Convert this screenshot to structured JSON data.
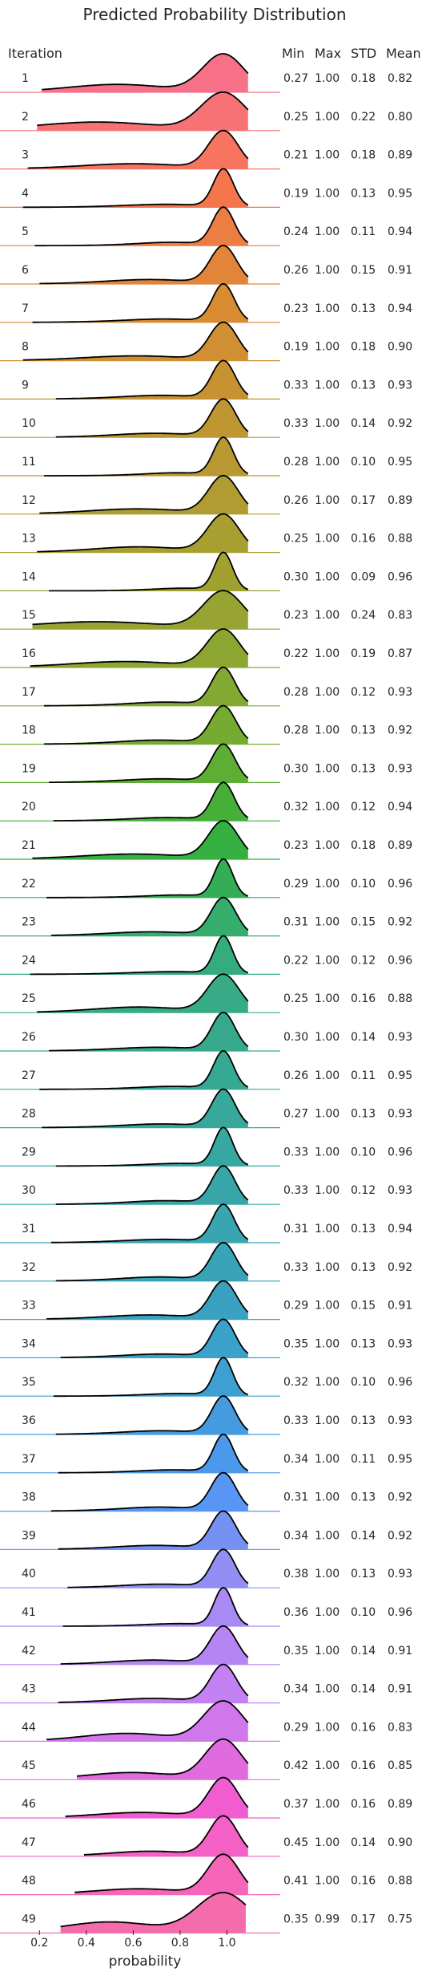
{
  "chart_data": {
    "type": "ridgeline",
    "title": "Predicted Probability Distribution",
    "row_header": "Iteration",
    "column_headers": [
      "Min",
      "Max",
      "STD",
      "Mean"
    ],
    "xlabel": "probability",
    "xticks": [
      "0.2",
      "0.4",
      "0.6",
      "0.8",
      "1.0"
    ],
    "xlim": [
      0.1,
      1.2
    ],
    "iterations": [
      "1",
      "2",
      "3",
      "4",
      "5",
      "6",
      "7",
      "8",
      "9",
      "10",
      "11",
      "12",
      "13",
      "14",
      "15",
      "16",
      "17",
      "18",
      "19",
      "20",
      "21",
      "22",
      "23",
      "24",
      "25",
      "26",
      "27",
      "28",
      "29",
      "30",
      "31",
      "32",
      "33",
      "34",
      "35",
      "36",
      "37",
      "38",
      "39",
      "40",
      "41",
      "42",
      "43",
      "44",
      "45",
      "46",
      "47",
      "48",
      "49"
    ],
    "min": [
      "0.27",
      "0.25",
      "0.21",
      "0.19",
      "0.24",
      "0.26",
      "0.23",
      "0.19",
      "0.33",
      "0.33",
      "0.28",
      "0.26",
      "0.25",
      "0.30",
      "0.23",
      "0.22",
      "0.28",
      "0.28",
      "0.30",
      "0.32",
      "0.23",
      "0.29",
      "0.31",
      "0.22",
      "0.25",
      "0.30",
      "0.26",
      "0.27",
      "0.33",
      "0.33",
      "0.31",
      "0.33",
      "0.29",
      "0.35",
      "0.32",
      "0.33",
      "0.34",
      "0.31",
      "0.34",
      "0.38",
      "0.36",
      "0.35",
      "0.34",
      "0.29",
      "0.42",
      "0.37",
      "0.45",
      "0.41",
      "0.35"
    ],
    "max": [
      "1.00",
      "1.00",
      "1.00",
      "1.00",
      "1.00",
      "1.00",
      "1.00",
      "1.00",
      "1.00",
      "1.00",
      "1.00",
      "1.00",
      "1.00",
      "1.00",
      "1.00",
      "1.00",
      "1.00",
      "1.00",
      "1.00",
      "1.00",
      "1.00",
      "1.00",
      "1.00",
      "1.00",
      "1.00",
      "1.00",
      "1.00",
      "1.00",
      "1.00",
      "1.00",
      "1.00",
      "1.00",
      "1.00",
      "1.00",
      "1.00",
      "1.00",
      "1.00",
      "1.00",
      "1.00",
      "1.00",
      "1.00",
      "1.00",
      "1.00",
      "1.00",
      "1.00",
      "1.00",
      "1.00",
      "1.00",
      "0.99"
    ],
    "std": [
      "0.18",
      "0.22",
      "0.18",
      "0.13",
      "0.11",
      "0.15",
      "0.13",
      "0.18",
      "0.13",
      "0.14",
      "0.10",
      "0.17",
      "0.16",
      "0.09",
      "0.24",
      "0.19",
      "0.12",
      "0.13",
      "0.13",
      "0.12",
      "0.18",
      "0.10",
      "0.15",
      "0.12",
      "0.16",
      "0.14",
      "0.11",
      "0.13",
      "0.10",
      "0.12",
      "0.13",
      "0.13",
      "0.15",
      "0.13",
      "0.10",
      "0.13",
      "0.11",
      "0.13",
      "0.14",
      "0.13",
      "0.10",
      "0.14",
      "0.14",
      "0.16",
      "0.16",
      "0.16",
      "0.14",
      "0.16",
      "0.17"
    ],
    "mean": [
      "0.82",
      "0.80",
      "0.89",
      "0.95",
      "0.94",
      "0.91",
      "0.94",
      "0.90",
      "0.93",
      "0.92",
      "0.95",
      "0.89",
      "0.88",
      "0.96",
      "0.83",
      "0.87",
      "0.93",
      "0.92",
      "0.93",
      "0.94",
      "0.89",
      "0.96",
      "0.92",
      "0.96",
      "0.88",
      "0.93",
      "0.95",
      "0.93",
      "0.96",
      "0.93",
      "0.94",
      "0.92",
      "0.91",
      "0.93",
      "0.96",
      "0.93",
      "0.95",
      "0.92",
      "0.92",
      "0.93",
      "0.96",
      "0.91",
      "0.91",
      "0.83",
      "0.85",
      "0.89",
      "0.90",
      "0.88",
      "0.75"
    ],
    "colors": [
      "#f77189",
      "#f7754f",
      "#dc8932",
      "#c39532",
      "#ae9d31",
      "#97a431",
      "#77ab31",
      "#33b03a",
      "#35ac7a",
      "#36a98f",
      "#37a7a3",
      "#39a3b8",
      "#3ca0cf",
      "#5096f4",
      "#a38cf4",
      "#c77ff4",
      "#f45bcf",
      "#f56cad"
    ],
    "grid": false,
    "legend": "none"
  }
}
